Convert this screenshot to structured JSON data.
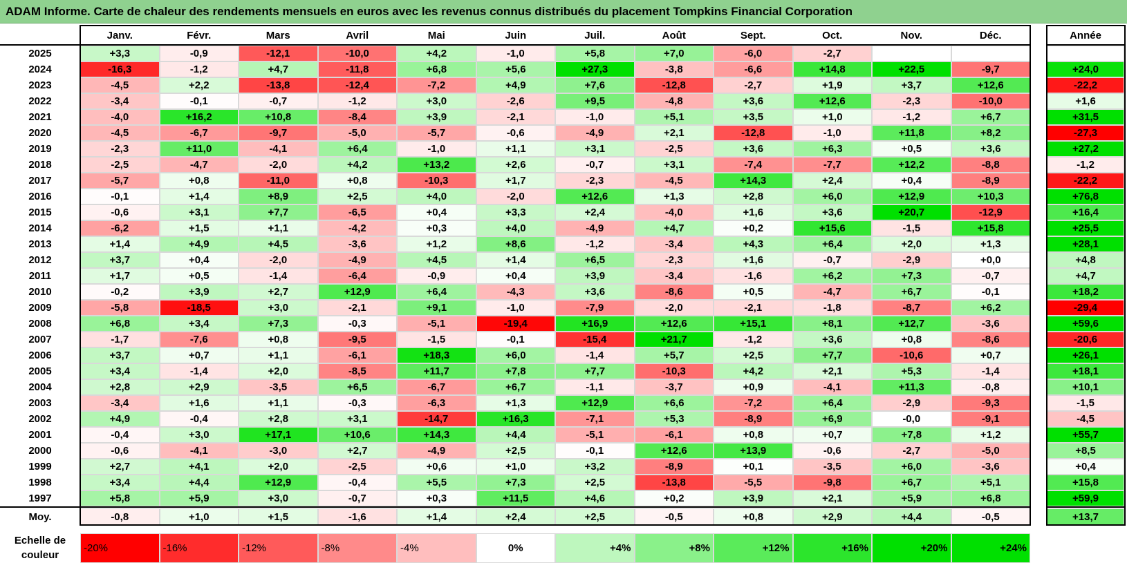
{
  "title": "ADAM Informe. Carte de chaleur des rendements mensuels en euros avec les revenus connus distribués du placement Tompkins Financial Corporation",
  "chart_data": {
    "type": "heatmap",
    "columns": [
      "Janv.",
      "Févr.",
      "Mars",
      "Avril",
      "Mai",
      "Juin",
      "Juil.",
      "Août",
      "Sept.",
      "Oct.",
      "Nov.",
      "Déc."
    ],
    "year_column": "Année",
    "rows": [
      {
        "year": "2025",
        "values": [
          "+3,3",
          "-0,9",
          "-12,1",
          "-10,0",
          "+4,2",
          "-1,0",
          "+5,8",
          "+7,0",
          "-6,0",
          "-2,7",
          "",
          ""
        ],
        "annual": ""
      },
      {
        "year": "2024",
        "values": [
          "-16,3",
          "-1,2",
          "+4,7",
          "-11,8",
          "+6,8",
          "+5,6",
          "+27,3",
          "-3,8",
          "-6,6",
          "+14,8",
          "+22,5",
          "-9,7"
        ],
        "annual": "+24,0"
      },
      {
        "year": "2023",
        "values": [
          "-4,5",
          "+2,2",
          "-13,8",
          "-12,4",
          "-7,2",
          "+4,9",
          "+7,6",
          "-12,8",
          "-2,7",
          "+1,9",
          "+3,7",
          "+12,6"
        ],
        "annual": "-22,2"
      },
      {
        "year": "2022",
        "values": [
          "-3,4",
          "-0,1",
          "-0,7",
          "-1,2",
          "+3,0",
          "-2,6",
          "+9,5",
          "-4,8",
          "+3,6",
          "+12,6",
          "-2,3",
          "-10,0"
        ],
        "annual": "+1,6"
      },
      {
        "year": "2021",
        "values": [
          "-4,0",
          "+16,2",
          "+10,8",
          "-8,4",
          "+3,9",
          "-2,1",
          "-1,0",
          "+5,1",
          "+3,5",
          "+1,0",
          "-1,2",
          "+6,7"
        ],
        "annual": "+31,5"
      },
      {
        "year": "2020",
        "values": [
          "-4,5",
          "-6,7",
          "-9,7",
          "-5,0",
          "-5,7",
          "-0,6",
          "-4,9",
          "+2,1",
          "-12,8",
          "-1,0",
          "+11,8",
          "+8,2"
        ],
        "annual": "-27,3"
      },
      {
        "year": "2019",
        "values": [
          "-2,3",
          "+11,0",
          "-4,1",
          "+6,4",
          "-1,0",
          "+1,1",
          "+3,1",
          "-2,5",
          "+3,6",
          "+6,3",
          "+0,5",
          "+3,6"
        ],
        "annual": "+27,2"
      },
      {
        "year": "2018",
        "values": [
          "-2,5",
          "-4,7",
          "-2,0",
          "+4,2",
          "+13,2",
          "+2,6",
          "-0,7",
          "+3,1",
          "-7,4",
          "-7,7",
          "+12,2",
          "-8,8"
        ],
        "annual": "-1,2"
      },
      {
        "year": "2017",
        "values": [
          "-5,7",
          "+0,8",
          "-11,0",
          "+0,8",
          "-10,3",
          "+1,7",
          "-2,3",
          "-4,5",
          "+14,3",
          "+2,4",
          "+0,4",
          "-8,9"
        ],
        "annual": "-22,2"
      },
      {
        "year": "2016",
        "values": [
          "-0,1",
          "+1,4",
          "+8,9",
          "+2,5",
          "+4,0",
          "-2,0",
          "+12,6",
          "+1,3",
          "+2,8",
          "+6,0",
          "+12,9",
          "+10,3"
        ],
        "annual": "+76,8"
      },
      {
        "year": "2015",
        "values": [
          "-0,6",
          "+3,1",
          "+7,7",
          "-6,5",
          "+0,4",
          "+3,3",
          "+2,4",
          "-4,0",
          "+1,6",
          "+3,6",
          "+20,7",
          "-12,9"
        ],
        "annual": "+16,4"
      },
      {
        "year": "2014",
        "values": [
          "-6,2",
          "+1,5",
          "+1,1",
          "-4,2",
          "+0,3",
          "+4,0",
          "-4,9",
          "+4,7",
          "+0,2",
          "+15,6",
          "-1,5",
          "+15,8"
        ],
        "annual": "+25,5"
      },
      {
        "year": "2013",
        "values": [
          "+1,4",
          "+4,9",
          "+4,5",
          "-3,6",
          "+1,2",
          "+8,6",
          "-1,2",
          "-3,4",
          "+4,3",
          "+6,4",
          "+2,0",
          "+1,3"
        ],
        "annual": "+28,1"
      },
      {
        "year": "2012",
        "values": [
          "+3,7",
          "+0,4",
          "-2,0",
          "-4,9",
          "+4,5",
          "+1,4",
          "+6,5",
          "-2,3",
          "+1,6",
          "-0,7",
          "-2,9",
          "+0,0"
        ],
        "annual": "+4,8"
      },
      {
        "year": "2011",
        "values": [
          "+1,7",
          "+0,5",
          "-1,4",
          "-6,4",
          "-0,9",
          "+0,4",
          "+3,9",
          "-3,4",
          "-1,6",
          "+6,2",
          "+7,3",
          "-0,7"
        ],
        "annual": "+4,7"
      },
      {
        "year": "2010",
        "values": [
          "-0,2",
          "+3,9",
          "+2,7",
          "+12,9",
          "+6,4",
          "-4,3",
          "+3,6",
          "-8,6",
          "+0,5",
          "-4,7",
          "+6,7",
          "-0,1"
        ],
        "annual": "+18,2"
      },
      {
        "year": "2009",
        "values": [
          "-5,8",
          "-18,5",
          "+3,0",
          "-2,1",
          "+9,1",
          "-1,0",
          "-7,9",
          "-2,0",
          "-2,1",
          "-1,8",
          "-8,7",
          "+6,2"
        ],
        "annual": "-29,4"
      },
      {
        "year": "2008",
        "values": [
          "+6,8",
          "+3,4",
          "+7,3",
          "-0,3",
          "-5,1",
          "-19,4",
          "+16,9",
          "+12,6",
          "+15,1",
          "+8,1",
          "+12,7",
          "-3,6"
        ],
        "annual": "+59,6"
      },
      {
        "year": "2007",
        "values": [
          "-1,7",
          "-7,6",
          "+0,8",
          "-9,5",
          "-1,5",
          "-0,1",
          "-15,4",
          "+21,7",
          "-1,2",
          "+3,6",
          "+0,8",
          "-8,6"
        ],
        "annual": "-20,6"
      },
      {
        "year": "2006",
        "values": [
          "+3,7",
          "+0,7",
          "+1,1",
          "-6,1",
          "+18,3",
          "+6,0",
          "-1,4",
          "+5,7",
          "+2,5",
          "+7,7",
          "-10,6",
          "+0,7"
        ],
        "annual": "+26,1"
      },
      {
        "year": "2005",
        "values": [
          "+3,4",
          "-1,4",
          "+2,0",
          "-8,5",
          "+11,7",
          "+7,8",
          "+7,7",
          "-10,3",
          "+4,2",
          "+2,1",
          "+5,3",
          "-1,4"
        ],
        "annual": "+18,1"
      },
      {
        "year": "2004",
        "values": [
          "+2,8",
          "+2,9",
          "-3,5",
          "+6,5",
          "-6,7",
          "+6,7",
          "-1,1",
          "-3,7",
          "+0,9",
          "-4,1",
          "+11,3",
          "-0,8"
        ],
        "annual": "+10,1"
      },
      {
        "year": "2003",
        "values": [
          "-3,4",
          "+1,6",
          "+1,1",
          "-0,3",
          "-6,3",
          "+1,3",
          "+12,9",
          "+6,6",
          "-7,2",
          "+6,4",
          "-2,9",
          "-9,3"
        ],
        "annual": "-1,5"
      },
      {
        "year": "2002",
        "values": [
          "+4,9",
          "-0,4",
          "+2,8",
          "+3,1",
          "-14,7",
          "+16,3",
          "-7,1",
          "+5,3",
          "-8,9",
          "+6,9",
          "-0,0",
          "-9,1"
        ],
        "annual": "-4,5"
      },
      {
        "year": "2001",
        "values": [
          "-0,4",
          "+3,0",
          "+17,1",
          "+10,6",
          "+14,3",
          "+4,4",
          "-5,1",
          "-6,1",
          "+0,8",
          "+0,7",
          "+7,8",
          "+1,2"
        ],
        "annual": "+55,7"
      },
      {
        "year": "2000",
        "values": [
          "-0,6",
          "-4,1",
          "-3,0",
          "+2,7",
          "-4,9",
          "+2,5",
          "-0,1",
          "+12,6",
          "+13,9",
          "-0,6",
          "-2,7",
          "-5,0"
        ],
        "annual": "+8,5"
      },
      {
        "year": "1999",
        "values": [
          "+2,7",
          "+4,1",
          "+2,0",
          "-2,5",
          "+0,6",
          "+1,0",
          "+3,2",
          "-8,9",
          "+0,1",
          "-3,5",
          "+6,0",
          "-3,6"
        ],
        "annual": "+0,4"
      },
      {
        "year": "1998",
        "values": [
          "+3,4",
          "+4,4",
          "+12,9",
          "-0,4",
          "+5,5",
          "+7,3",
          "+2,5",
          "-13,8",
          "-5,5",
          "-9,8",
          "+6,7",
          "+5,1"
        ],
        "annual": "+15,8"
      },
      {
        "year": "1997",
        "values": [
          "+5,8",
          "+5,9",
          "+3,0",
          "-0,7",
          "+0,3",
          "+11,5",
          "+4,6",
          "+0,2",
          "+3,9",
          "+2,1",
          "+5,9",
          "+6,8"
        ],
        "annual": "+59,9"
      }
    ],
    "average": {
      "label": "Moy.",
      "values": [
        "-0,8",
        "+1,0",
        "+1,5",
        "-1,6",
        "+1,4",
        "+2,4",
        "+2,5",
        "-0,5",
        "+0,8",
        "+2,9",
        "+4,4",
        "-0,5"
      ],
      "annual": "+13,7"
    },
    "scale": {
      "label_line1": "Echelle de",
      "label_line2": "couleur",
      "steps": [
        {
          "label": "-20%",
          "value": -20
        },
        {
          "label": "-16%",
          "value": -16
        },
        {
          "label": "-12%",
          "value": -12
        },
        {
          "label": "-8%",
          "value": -8
        },
        {
          "label": "-4%",
          "value": -4
        },
        {
          "label": "0%",
          "value": 0
        },
        {
          "label": "+4%",
          "value": 4
        },
        {
          "label": "+8%",
          "value": 8
        },
        {
          "label": "+12%",
          "value": 12
        },
        {
          "label": "+16%",
          "value": 16
        },
        {
          "label": "+20%",
          "value": 20
        },
        {
          "label": "+24%",
          "value": 24
        }
      ]
    },
    "colors": {
      "negative": "#ff0000",
      "neutral": "#ffffff",
      "positive": "#00e000",
      "border": "#d9d9d9",
      "title_bg": "#8fd18f"
    }
  }
}
